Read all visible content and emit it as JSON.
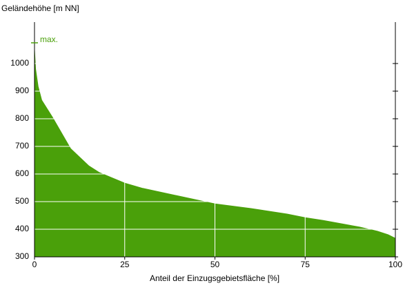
{
  "chart_data": {
    "type": "area",
    "y_label": "Geländehöhe [m NN]",
    "x_label": "Anteil der Einzugsgebietsfläche [%]",
    "x": [
      0,
      0.3,
      1,
      2,
      5,
      10,
      15,
      18,
      25,
      30,
      40,
      50,
      60,
      70,
      75,
      80,
      85,
      90,
      95,
      98,
      100
    ],
    "values": [
      1050,
      980,
      917,
      867,
      805,
      692,
      630,
      605,
      567,
      548,
      520,
      492,
      475,
      455,
      442,
      432,
      420,
      408,
      393,
      380,
      367
    ],
    "color": "#4aa00a",
    "max_label": "max.",
    "max_value": 1075,
    "xlim": [
      0,
      100
    ],
    "xticks": [
      0,
      25,
      50,
      75,
      100
    ],
    "ylim": [
      300,
      1150
    ],
    "yticks": [
      300,
      400,
      500,
      600,
      700,
      800,
      900,
      1000
    ],
    "grid": true
  }
}
